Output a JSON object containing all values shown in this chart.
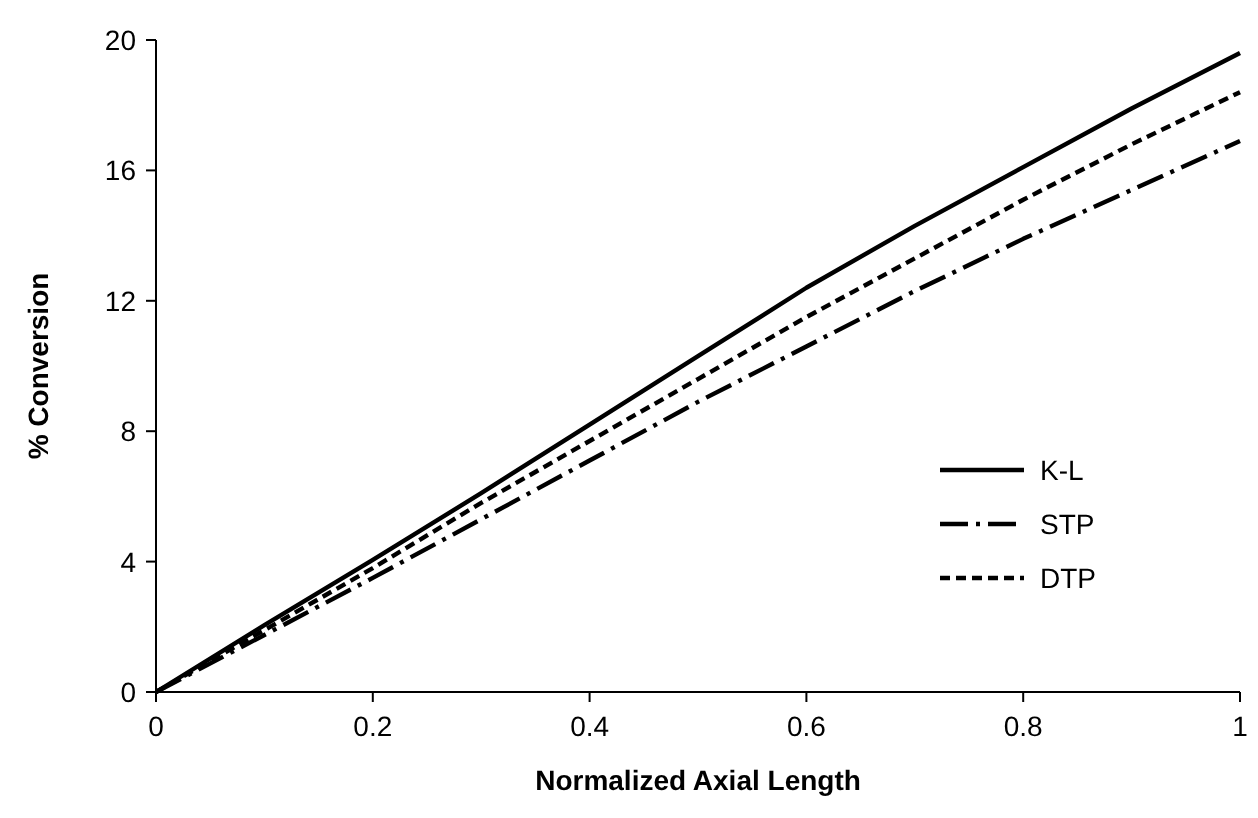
{
  "chart_data": {
    "type": "line",
    "xlabel": "Normalized Axial Length",
    "ylabel": "% Conversion",
    "x": [
      0,
      0.1,
      0.2,
      0.3,
      0.4,
      0.5,
      0.6,
      0.7,
      0.8,
      0.9,
      1
    ],
    "series": [
      {
        "name": "K-L",
        "color": "#000000",
        "line_style": "solid",
        "values": [
          0,
          2.05,
          4.05,
          6.1,
          8.2,
          10.3,
          12.4,
          14.3,
          16.1,
          17.9,
          19.6
        ]
      },
      {
        "name": "STP",
        "color": "#000000",
        "line_style": "dashdot",
        "values": [
          0,
          1.75,
          3.5,
          5.3,
          7.1,
          8.9,
          10.6,
          12.3,
          13.9,
          15.4,
          16.9
        ]
      },
      {
        "name": "DTP",
        "color": "#000000",
        "line_style": "dashed",
        "values": [
          0,
          1.9,
          3.8,
          5.8,
          7.7,
          9.6,
          11.5,
          13.3,
          15.1,
          16.8,
          18.4
        ]
      }
    ],
    "xlim": [
      0,
      1
    ],
    "xticks": [
      0,
      0.2,
      0.4,
      0.6,
      0.8,
      1
    ],
    "ylim": [
      0,
      20
    ],
    "yticks": [
      0,
      4,
      8,
      12,
      16,
      20
    ],
    "grid": false,
    "legend": "bottom right",
    "marker": "none"
  }
}
